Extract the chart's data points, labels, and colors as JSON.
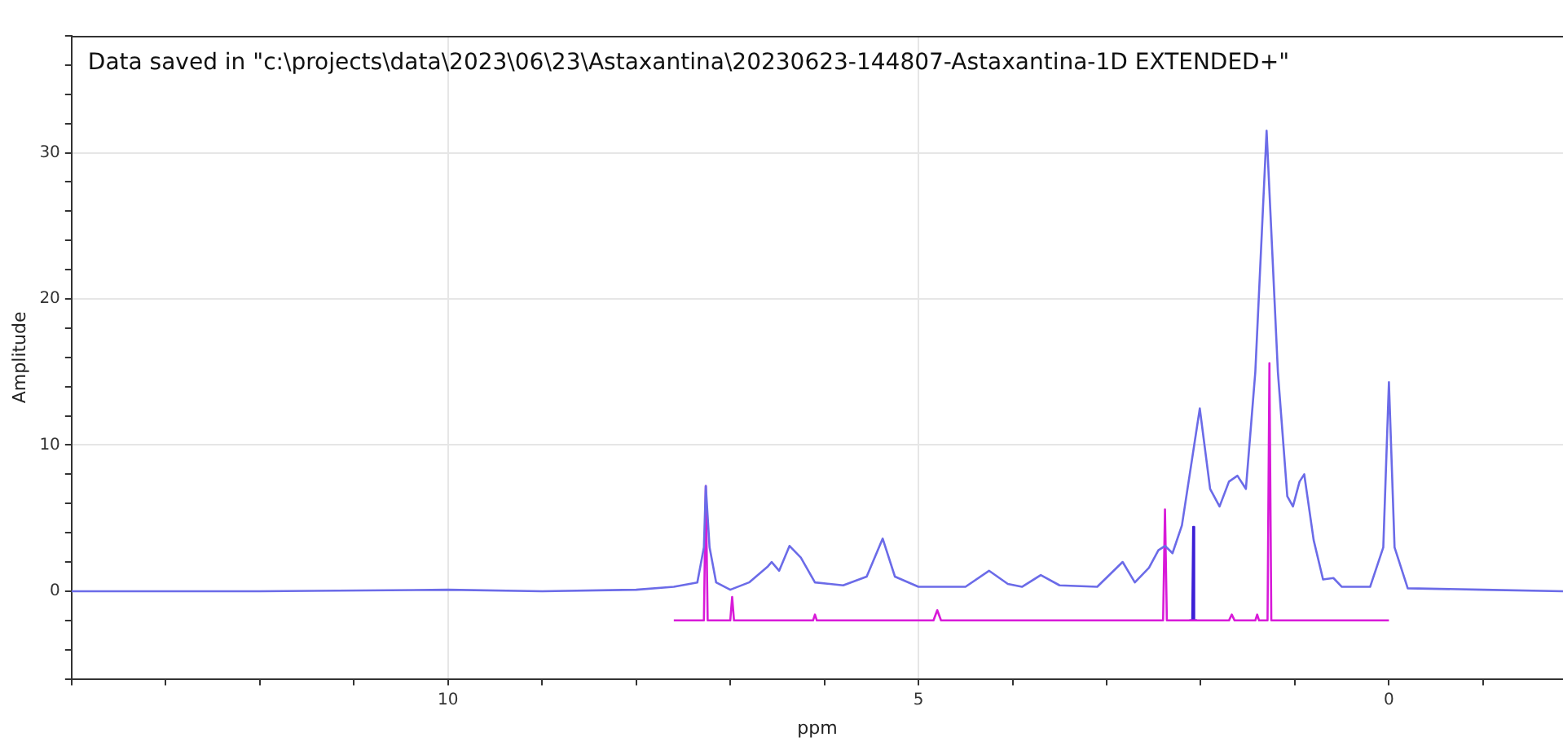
{
  "chart_data": {
    "type": "line",
    "xlabel": "ppm",
    "ylabel": "Amplitude",
    "annotations": [
      "Data saved in \"c:\\projects\\data\\2023\\06\\23\\Astaxantina\\20230623-144807-Astaxantina-1D EXTENDED+\""
    ],
    "xlim": [
      14.0,
      -1.85
    ],
    "ylim": [
      -6,
      38
    ],
    "xticks": [
      {
        "value": 14,
        "label": null
      },
      {
        "value": 13,
        "label": null
      },
      {
        "value": 12,
        "label": null
      },
      {
        "value": 11,
        "label": null
      },
      10,
      {
        "value": 9,
        "label": null
      },
      {
        "value": 8,
        "label": null
      },
      {
        "value": 7,
        "label": null
      },
      {
        "value": 6,
        "label": null
      },
      5,
      {
        "value": 4,
        "label": null
      },
      {
        "value": 3,
        "label": null
      },
      {
        "value": 2,
        "label": null
      },
      {
        "value": 1,
        "label": null
      },
      0,
      {
        "value": -1,
        "label": null
      }
    ],
    "yticks": [
      {
        "value": -6,
        "label": null
      },
      {
        "value": -4,
        "label": null
      },
      {
        "value": -2,
        "label": null
      },
      0,
      {
        "value": 2,
        "label": null
      },
      {
        "value": 4,
        "label": null
      },
      {
        "value": 6,
        "label": null
      },
      {
        "value": 8,
        "label": null
      },
      10,
      {
        "value": 12,
        "label": null
      },
      {
        "value": 14,
        "label": null
      },
      {
        "value": 16,
        "label": null
      },
      {
        "value": 18,
        "label": null
      },
      20,
      {
        "value": 22,
        "label": null
      },
      {
        "value": 24,
        "label": null
      },
      {
        "value": 26,
        "label": null
      },
      {
        "value": 28,
        "label": null
      },
      30,
      {
        "value": 32,
        "label": null
      },
      {
        "value": 34,
        "label": null
      },
      {
        "value": 36,
        "label": null
      },
      {
        "value": 38,
        "label": null
      }
    ],
    "grid": true,
    "legend": false,
    "marker": "none",
    "line_style": "solid",
    "series": [
      {
        "color": "#6b6be8",
        "x": [
          14.0,
          12,
          10,
          9,
          8,
          7.6,
          7.35,
          7.28,
          7.26,
          7.22,
          7.15,
          7.0,
          6.8,
          6.6,
          6.56,
          6.48,
          6.37,
          6.25,
          6.1,
          5.8,
          5.55,
          5.38,
          5.25,
          5.0,
          4.5,
          4.25,
          4.05,
          3.9,
          3.7,
          3.5,
          3.1,
          2.83,
          2.7,
          2.55,
          2.45,
          2.38,
          2.3,
          2.2,
          2.01,
          1.9,
          1.8,
          1.7,
          1.61,
          1.52,
          1.42,
          1.3,
          1.18,
          1.08,
          1.02,
          0.95,
          0.9,
          0.8,
          0.7,
          0.59,
          0.5,
          0.2,
          0.06,
          0.0,
          -0.06,
          -0.2,
          -1.0,
          -1.85
        ],
        "values": [
          0,
          0,
          0.1,
          0,
          0.1,
          0.3,
          0.6,
          3,
          7.2,
          3,
          0.6,
          0.1,
          0.6,
          1.7,
          2.0,
          1.4,
          3.1,
          2.3,
          0.6,
          0.4,
          1.0,
          3.6,
          1.0,
          0.3,
          0.3,
          1.4,
          0.5,
          0.3,
          1.1,
          0.4,
          0.3,
          2.0,
          0.6,
          1.6,
          2.8,
          3.1,
          2.6,
          4.5,
          12.5,
          7,
          5.8,
          7.5,
          7.9,
          7.0,
          15,
          31.5,
          15,
          6.5,
          5.8,
          7.5,
          8.0,
          3.5,
          0.8,
          0.9,
          0.3,
          0.3,
          3,
          14.3,
          3,
          0.2,
          0.1,
          0
        ]
      },
      {
        "color": "#d81ad8",
        "x": [
          7.6,
          7.28,
          7.26,
          7.24,
          7.0,
          6.98,
          6.96,
          6.12,
          6.1,
          6.08,
          4.84,
          4.8,
          4.76,
          2.4,
          2.38,
          2.36,
          1.7,
          1.67,
          1.64,
          1.42,
          1.4,
          1.38,
          1.29,
          1.27,
          1.25,
          0
        ],
        "values": [
          -2,
          -2,
          7.2,
          -2,
          -2,
          -0.4,
          -2,
          -2,
          -1.6,
          -2,
          -2,
          -1.3,
          -2,
          -2,
          5.6,
          -2,
          -2,
          -1.6,
          -2,
          -2,
          -1.6,
          -2,
          -2,
          15.6,
          -2,
          -2
        ]
      },
      {
        "color": "#3b1fd6",
        "x": [
          2.12,
          2.09,
          2.08,
          2.07,
          2.04
        ],
        "values": [
          -2,
          -2,
          4.4,
          -2,
          -2
        ]
      }
    ]
  }
}
